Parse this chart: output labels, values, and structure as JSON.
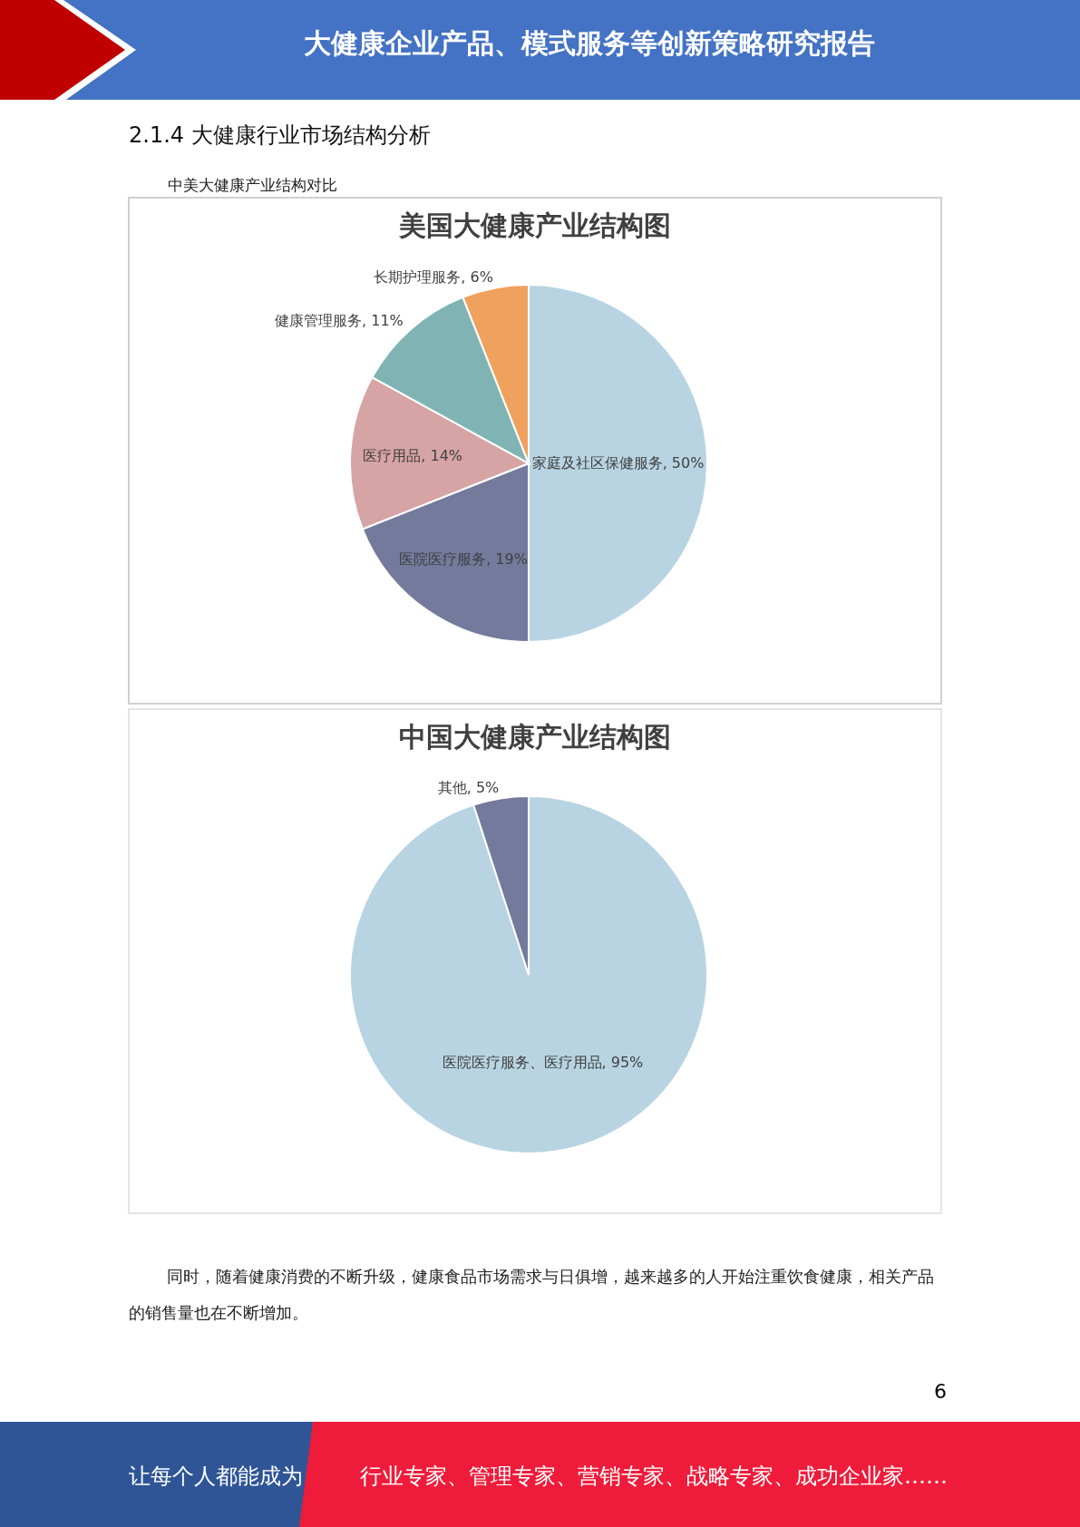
{
  "chart_data": [
    {
      "type": "pie",
      "title": "美国大健康产业结构图",
      "categories": [
        "家庭及社区保健服务",
        "医院医疗服务",
        "医疗用品",
        "健康管理服务",
        "长期护理服务"
      ],
      "values": [
        50,
        19,
        14,
        11,
        6
      ],
      "value_labels": [
        "50%",
        "19%",
        "14%",
        "11%",
        "6%"
      ],
      "colors": [
        "#b8d4e2",
        "#737a9c",
        "#d6a4a5",
        "#80b4b4",
        "#efa15d"
      ],
      "annotations": [
        "大健康企业产品、模式服务等创新策略研究报告",
        "2.1.4 大健康行业市场结构分析",
        "中美大健康产业结构对比"
      ]
    },
    {
      "type": "pie",
      "title": "中国大健康产业结构图",
      "categories": [
        "医院医疗服务、医疗用品",
        "其他"
      ],
      "values": [
        95,
        5
      ],
      "value_labels": [
        "95%",
        "5%"
      ],
      "colors": [
        "#b8d4e2",
        "#737a9c"
      ],
      "annotations": [
        "同时，随着健康消费的不断升级，健康食品市场需求与日俱增，越来越多的人开始注重饮食健康，相关产品的销售量也在不断增加。",
        "6",
        "让每个人都能成为",
        "行业专家、管理专家、营销专家、战略专家、成功企业家……"
      ]
    }
  ]
}
